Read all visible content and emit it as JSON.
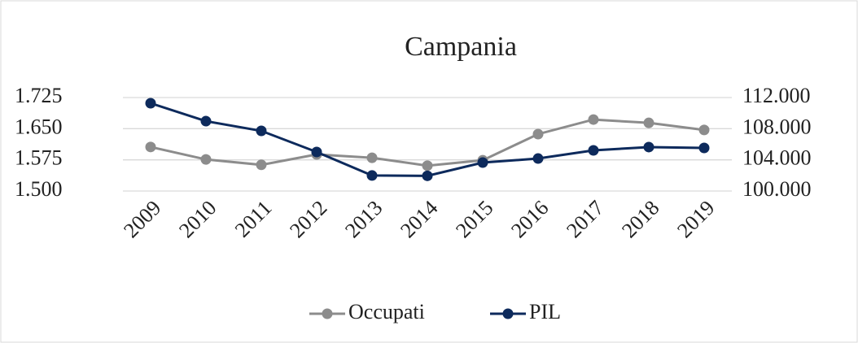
{
  "chart_data": {
    "type": "line",
    "title": "Campania",
    "categories": [
      "2009",
      "2010",
      "2011",
      "2012",
      "2013",
      "2014",
      "2015",
      "2016",
      "2017",
      "2018",
      "2019"
    ],
    "series": [
      {
        "name": "Occupati",
        "color": "#8c8c8c",
        "values": [
          1606,
          1576,
          1563,
          1588,
          1580,
          1561,
          1574,
          1637,
          1672,
          1664,
          1647
        ]
      },
      {
        "name": "PIL",
        "color": "#0d2a5c",
        "axis": "y2",
        "values": [
          111270,
          108970,
          107720,
          105010,
          101990,
          101950,
          103650,
          104170,
          105220,
          105640,
          105530
        ]
      }
    ],
    "ylim": [
      1500,
      1725
    ],
    "yticks": [
      {
        "value": 1500,
        "label": "1.500"
      },
      {
        "value": 1575,
        "label": "1.575"
      },
      {
        "value": 1650,
        "label": "1.650"
      },
      {
        "value": 1725,
        "label": "1.725"
      }
    ],
    "y2lim": [
      100000,
      112000
    ],
    "y2ticks": [
      {
        "value": 100000,
        "label": "100.000"
      },
      {
        "value": 104000,
        "label": "104.000"
      },
      {
        "value": 108000,
        "label": "108.000"
      },
      {
        "value": 112000,
        "label": "112.000"
      }
    ],
    "grid": true,
    "legend": "bottom"
  }
}
